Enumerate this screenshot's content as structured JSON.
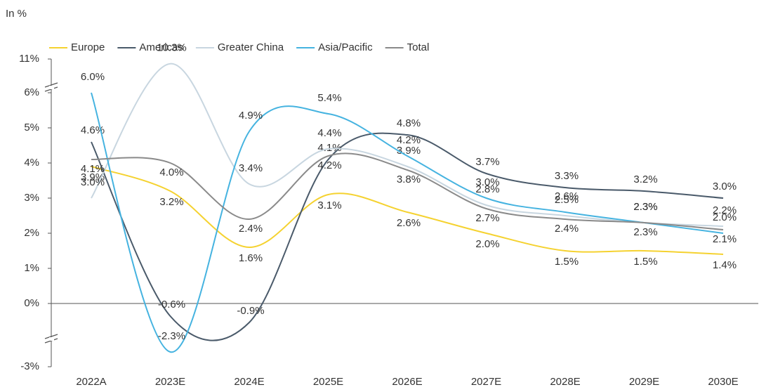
{
  "chart_data": {
    "type": "line",
    "unit_label": "In %",
    "categories": [
      "2022A",
      "2023E",
      "2024E",
      "2025E",
      "2026E",
      "2027E",
      "2028E",
      "2029E",
      "2030E"
    ],
    "ylim": [
      -3,
      11
    ],
    "yticks": [
      {
        "value": -3,
        "label": "-3%"
      },
      {
        "value": 0,
        "label": "0%"
      },
      {
        "value": 1,
        "label": "1%"
      },
      {
        "value": 2,
        "label": "2%"
      },
      {
        "value": 3,
        "label": "3%"
      },
      {
        "value": 4,
        "label": "4%"
      },
      {
        "value": 5,
        "label": "5%"
      },
      {
        "value": 6,
        "label": "6%"
      },
      {
        "value": 11,
        "label": "11%"
      }
    ],
    "legend": "top-left",
    "series": [
      {
        "name": "Europe",
        "color": "#f5d230",
        "values": [
          3.9,
          3.2,
          1.6,
          3.1,
          2.6,
          2.0,
          1.5,
          1.5,
          1.4
        ],
        "value_labels": [
          "3.9%",
          "3.2%",
          "1.6%",
          "3.1%",
          "2.6%",
          "2.0%",
          "1.5%",
          "1.5%",
          "1.4%"
        ]
      },
      {
        "name": "Americas",
        "color": "#4a5a6a",
        "values": [
          4.6,
          -0.6,
          -0.9,
          4.1,
          4.8,
          3.7,
          3.3,
          3.2,
          3.0
        ],
        "value_labels": [
          "4.6%",
          "-0.6%",
          "-0.9%",
          "4.1%",
          "4.8%",
          "3.7%",
          "3.3%",
          "3.2%",
          "3.0%"
        ]
      },
      {
        "name": "Greater China",
        "color": "#c8d6e0",
        "values": [
          3.0,
          10.3,
          3.4,
          4.4,
          3.9,
          2.8,
          2.5,
          2.3,
          2.2
        ],
        "value_labels": [
          "3.0%",
          "10.3%",
          "3.4%",
          "4.4%",
          "3.9%",
          "2.8%",
          "2.5%",
          "2.3%",
          "2.2%"
        ]
      },
      {
        "name": "Asia/Pacific",
        "color": "#45b3e0",
        "values": [
          6.0,
          -2.3,
          4.9,
          5.4,
          4.2,
          3.0,
          2.6,
          2.3,
          2.0
        ],
        "value_labels": [
          "6.0%",
          "-2.3%",
          "4.9%",
          "5.4%",
          "4.2%",
          "3.0%",
          "2.6%",
          "2.3%",
          "2.0%"
        ]
      },
      {
        "name": "Total",
        "color": "#8a8a8a",
        "values": [
          4.1,
          4.0,
          2.4,
          4.2,
          3.8,
          2.7,
          2.4,
          2.3,
          2.1
        ],
        "value_labels": [
          "4.1%",
          "4.0%",
          "2.4%",
          "4.2%",
          "3.8%",
          "2.7%",
          "2.4%",
          "2.3%",
          "2.1%"
        ]
      }
    ]
  }
}
